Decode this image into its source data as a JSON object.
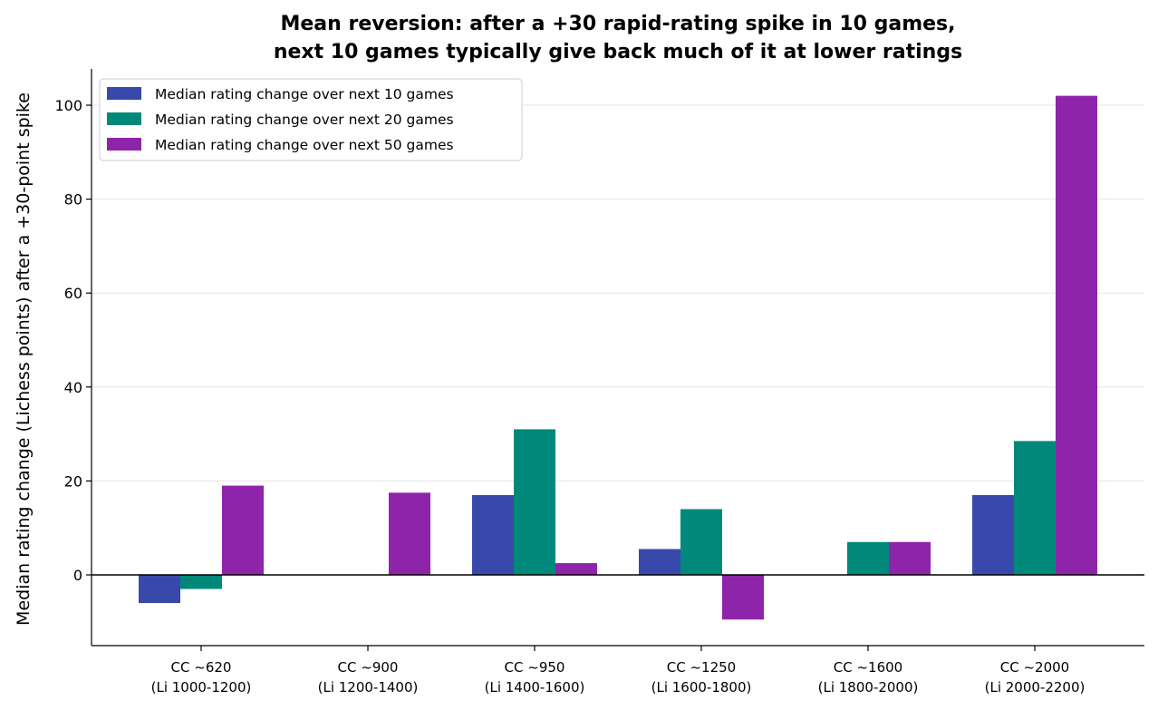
{
  "chart_data": {
    "type": "bar",
    "title_lines": [
      "Mean reversion: after a +30 rapid-rating spike in 10 games,",
      "next 10 games typically give back much of it at lower ratings"
    ],
    "xlabel": "",
    "ylabel": "Median rating change (Lichess points) after a +30-point spike",
    "ylim": [
      -15,
      108
    ],
    "yticks": [
      0,
      20,
      40,
      60,
      80,
      100
    ],
    "grid": "horizontal",
    "legend_position": "upper-left",
    "categories": [
      [
        "CC ~620",
        "(Li 1000-1200)"
      ],
      [
        "CC ~900",
        "(Li 1200-1400)"
      ],
      [
        "CC ~950",
        "(Li 1400-1600)"
      ],
      [
        "CC ~1250",
        "(Li 1600-1800)"
      ],
      [
        "CC ~1600",
        "(Li 1800-2000)"
      ],
      [
        "CC ~2000",
        "(Li 2000-2200)"
      ]
    ],
    "series": [
      {
        "name": "Median rating change over next 10 games",
        "color": "#3949AB",
        "values": [
          -6,
          0,
          17,
          5.5,
          0,
          17
        ]
      },
      {
        "name": "Median rating change over next 20 games",
        "color": "#00897B",
        "values": [
          -3,
          0,
          31,
          14,
          7,
          28.5
        ]
      },
      {
        "name": "Median rating change over next 50 games",
        "color": "#8E24AA",
        "values": [
          19,
          17.5,
          2.5,
          -9.5,
          7,
          102
        ]
      }
    ]
  }
}
